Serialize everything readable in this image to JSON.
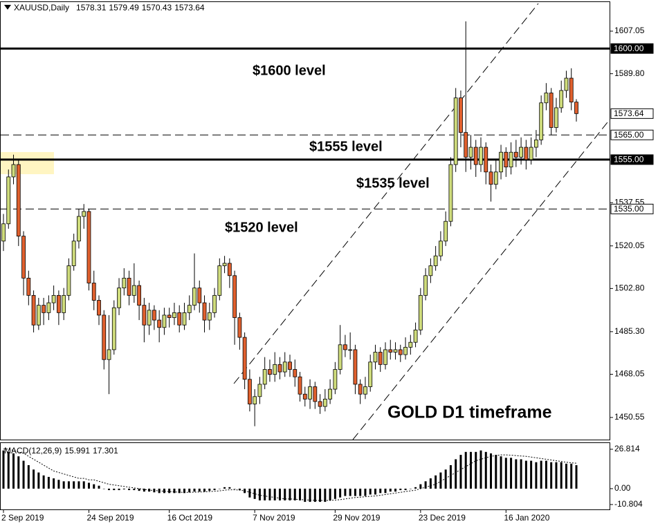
{
  "chart_data": {
    "type": "candlestick",
    "symbol": "XAUUSD,Daily",
    "categories": [
      "2 Sep 2019",
      null,
      null,
      null,
      null,
      null,
      null,
      null,
      null,
      null,
      null,
      null,
      null,
      null,
      null,
      null,
      null,
      "24 Sep 2019",
      null,
      null,
      null,
      null,
      null,
      null,
      null,
      null,
      null,
      null,
      null,
      null,
      null,
      null,
      null,
      "16 Oct 2019",
      null,
      null,
      null,
      null,
      null,
      null,
      null,
      null,
      null,
      null,
      null,
      null,
      null,
      null,
      null,
      null,
      "7 Nov 2019",
      null,
      null,
      null,
      null,
      null,
      null,
      null,
      null,
      null,
      null,
      null,
      null,
      null,
      null,
      null,
      "29 Nov 2019",
      null,
      null,
      null,
      null,
      null,
      null,
      null,
      null,
      null,
      null,
      null,
      null,
      null,
      null,
      null,
      null,
      "23 Dec 2019",
      null,
      null,
      null,
      null,
      null,
      null,
      null,
      null,
      null,
      null,
      null,
      null,
      null,
      null,
      null,
      null,
      "16 Jan 2020",
      null,
      null,
      null,
      null,
      null,
      null,
      null,
      null,
      null,
      null,
      null,
      null,
      null,
      null
    ],
    "open": [
      1522,
      1529,
      1548,
      1553,
      1524,
      1507,
      1500,
      1488,
      1496,
      1493,
      1497,
      1500,
      1493,
      1500,
      1512,
      1522,
      1532,
      1534,
      1505,
      1498,
      1492,
      1474,
      1478,
      1495,
      1503,
      1507,
      1500,
      1504,
      1496,
      1488,
      1494,
      1490,
      1487,
      1492,
      1491,
      1493,
      1488,
      1493,
      1496,
      1503,
      1497,
      1490,
      1493,
      1500,
      1512,
      1513,
      1508,
      1491,
      1483,
      1466,
      1456,
      1459,
      1464,
      1470,
      1468,
      1472,
      1469,
      1473,
      1470,
      1467,
      1460,
      1458,
      1463,
      1457,
      1455,
      1458,
      1462,
      1470,
      1480,
      1478,
      1478,
      1464,
      1460,
      1463,
      1473,
      1477,
      1472,
      1478,
      1477,
      1478,
      1476,
      1479,
      1481,
      1486,
      1500,
      1508,
      1512,
      1516,
      1522,
      1530,
      1553,
      1580,
      1566,
      1556,
      1560,
      1553,
      1560,
      1550,
      1545,
      1550,
      1558,
      1552,
      1558,
      1556,
      1560,
      1555,
      1560,
      1563,
      1578,
      1582,
      1568,
      1576,
      1583,
      1588,
      1578.31
    ],
    "high": [
      1533,
      1551,
      1557,
      1555,
      1526,
      1510,
      1502,
      1499,
      1499,
      1500,
      1504,
      1502,
      1503,
      1515,
      1525,
      1535,
      1537,
      1535,
      1510,
      1500,
      1494,
      1492,
      1498,
      1507,
      1511,
      1510,
      1513,
      1506,
      1499,
      1497,
      1496,
      1494,
      1495,
      1495,
      1497,
      1496,
      1497,
      1500,
      1517,
      1506,
      1500,
      1497,
      1503,
      1515,
      1516,
      1515,
      1510,
      1493,
      1485,
      1470,
      1462,
      1467,
      1475,
      1474,
      1477,
      1475,
      1477,
      1476,
      1474,
      1469,
      1463,
      1466,
      1465,
      1460,
      1462,
      1466,
      1473,
      1488,
      1484,
      1485,
      1480,
      1466,
      1467,
      1476,
      1480,
      1479,
      1481,
      1482,
      1481,
      1480,
      1483,
      1484,
      1489,
      1503,
      1511,
      1515,
      1520,
      1526,
      1534,
      1556,
      1584,
      1583,
      1611,
      1565,
      1563,
      1564,
      1562,
      1553,
      1555,
      1561,
      1560,
      1562,
      1563,
      1564,
      1563,
      1564,
      1567,
      1581,
      1586,
      1584,
      1580,
      1587,
      1591,
      1592,
      1579.49
    ],
    "low": [
      1518,
      1527,
      1545,
      1520,
      1500,
      1496,
      1485,
      1486,
      1488,
      1490,
      1494,
      1488,
      1490,
      1498,
      1510,
      1519,
      1527,
      1502,
      1494,
      1488,
      1470,
      1460,
      1476,
      1492,
      1500,
      1496,
      1497,
      1490,
      1481,
      1484,
      1486,
      1481,
      1484,
      1487,
      1488,
      1485,
      1486,
      1490,
      1494,
      1493,
      1485,
      1486,
      1491,
      1498,
      1509,
      1503,
      1480,
      1478,
      1462,
      1453,
      1447,
      1456,
      1462,
      1465,
      1465,
      1466,
      1467,
      1467,
      1463,
      1457,
      1455,
      1454,
      1454,
      1452,
      1453,
      1456,
      1460,
      1468,
      1475,
      1474,
      1460,
      1456,
      1458,
      1461,
      1470,
      1469,
      1470,
      1474,
      1474,
      1473,
      1474,
      1476,
      1479,
      1484,
      1498,
      1505,
      1510,
      1514,
      1520,
      1528,
      1550,
      1560,
      1550,
      1551,
      1548,
      1550,
      1545,
      1538,
      1543,
      1547,
      1548,
      1549,
      1552,
      1553,
      1551,
      1553,
      1556,
      1561,
      1575,
      1565,
      1566,
      1574,
      1580,
      1575,
      1570.43
    ],
    "close": [
      1529,
      1548,
      1553,
      1524,
      1507,
      1500,
      1488,
      1496,
      1493,
      1497,
      1500,
      1493,
      1500,
      1512,
      1522,
      1532,
      1534,
      1505,
      1498,
      1492,
      1474,
      1478,
      1495,
      1503,
      1507,
      1500,
      1504,
      1496,
      1488,
      1494,
      1490,
      1487,
      1492,
      1491,
      1493,
      1488,
      1493,
      1496,
      1503,
      1497,
      1490,
      1493,
      1500,
      1512,
      1513,
      1508,
      1491,
      1483,
      1466,
      1456,
      1459,
      1464,
      1470,
      1468,
      1472,
      1469,
      1473,
      1470,
      1467,
      1460,
      1458,
      1463,
      1457,
      1455,
      1458,
      1462,
      1470,
      1480,
      1478,
      1478,
      1464,
      1460,
      1463,
      1473,
      1477,
      1472,
      1478,
      1477,
      1478,
      1476,
      1479,
      1481,
      1486,
      1500,
      1508,
      1512,
      1516,
      1522,
      1530,
      1553,
      1580,
      1566,
      1556,
      1560,
      1553,
      1560,
      1550,
      1545,
      1550,
      1558,
      1552,
      1558,
      1556,
      1560,
      1555,
      1560,
      1563,
      1578,
      1582,
      1568,
      1576,
      1583,
      1588,
      1578.31,
      1573.64
    ],
    "colors": {
      "up": "#cfdc7c",
      "down": "#e0602e"
    },
    "ylim": [
      1441.3,
      1619.1
    ],
    "yticks": [
      {
        "value": 1607.05,
        "label": "1607.05"
      },
      {
        "value": 1589.8,
        "label": "1589.80"
      },
      {
        "value": 1537.55,
        "label": "1537.55"
      },
      {
        "value": 1520.05,
        "label": "1520.05"
      },
      {
        "value": 1502.8,
        "label": "1502.80"
      },
      {
        "value": 1485.3,
        "label": "1485.30"
      },
      {
        "value": 1468.05,
        "label": "1468.05"
      },
      {
        "value": 1450.55,
        "label": "1450.55"
      }
    ],
    "levels": [
      {
        "value": 1600,
        "label": "1600.00",
        "style": "solid"
      },
      {
        "value": 1565,
        "label": "1565.00",
        "style": "dashed"
      },
      {
        "value": 1555,
        "label": "1555.00",
        "style": "solid"
      },
      {
        "value": 1535,
        "label": "1535.00",
        "style": "dashed"
      }
    ],
    "annotations": [
      "$1600 level",
      "$1555 level",
      "$1535 level",
      "$1520 level",
      "GOLD D1 timeframe"
    ],
    "macd": {
      "title": "MACD(12,26,9)",
      "histogram": [
        26,
        25,
        24,
        22,
        19,
        16,
        13,
        11,
        9,
        8,
        7,
        6,
        5,
        5,
        5,
        5,
        5,
        4,
        3,
        2,
        0,
        -1,
        -1,
        -1,
        -0.5,
        -1,
        -1,
        -1.5,
        -2,
        -2,
        -2.5,
        -3,
        -3,
        -3,
        -3,
        -3,
        -3,
        -2.5,
        -2,
        -2,
        -2,
        -1.5,
        -1,
        0,
        1,
        1,
        0,
        -1,
        -3,
        -6,
        -7,
        -8,
        -8,
        -8,
        -8,
        -8,
        -8,
        -8,
        -8,
        -8,
        -9,
        -9,
        -9,
        -9,
        -9,
        -8,
        -7,
        -6,
        -5,
        -5,
        -5,
        -5,
        -5,
        -4,
        -4,
        -3,
        -3,
        -2,
        -2,
        -1,
        -1,
        0,
        1,
        3,
        5,
        7,
        9,
        11,
        13,
        16,
        20,
        23,
        25,
        25,
        25,
        26,
        25,
        24,
        23,
        22,
        21,
        21,
        20,
        20,
        19,
        19,
        18,
        19,
        19,
        18,
        18,
        18,
        17,
        17,
        15.991
      ],
      "signal": [
        27,
        27,
        26,
        25,
        24,
        22,
        20,
        18,
        16,
        14,
        12,
        11,
        10,
        9,
        8,
        7,
        7,
        6,
        6,
        5,
        4,
        3,
        2.5,
        2,
        1.5,
        1,
        0.5,
        0,
        -0.5,
        -1,
        -1.2,
        -1.5,
        -1.8,
        -2,
        -2.2,
        -2.4,
        -2.5,
        -2.5,
        -2.4,
        -2.3,
        -2.2,
        -2,
        -1.8,
        -1.5,
        -1,
        -0.8,
        -0.8,
        -1,
        -1.5,
        -2.5,
        -3.5,
        -4.5,
        -5,
        -5.5,
        -6,
        -6.5,
        -7,
        -7,
        -7.2,
        -7.4,
        -7.6,
        -7.8,
        -8,
        -8,
        -8,
        -8,
        -7.8,
        -7.5,
        -7,
        -6.5,
        -6,
        -5.8,
        -5.5,
        -5.2,
        -5,
        -4.5,
        -4,
        -3.5,
        -3,
        -2.5,
        -2,
        -1.5,
        -1,
        0,
        1,
        2,
        3,
        5,
        7,
        9,
        11,
        13,
        15,
        17,
        19,
        20,
        21,
        22,
        22.5,
        23,
        23,
        22.8,
        22.5,
        22.2,
        22,
        21.5,
        21,
        20.5,
        20,
        19.5,
        19,
        18.5,
        18,
        17.6,
        17.301
      ],
      "ylim": [
        -14.6,
        31.5
      ],
      "yticks": [
        26.814,
        {
          "value": 0,
          "label": "0.00"
        },
        -10.804
      ]
    }
  }
}
